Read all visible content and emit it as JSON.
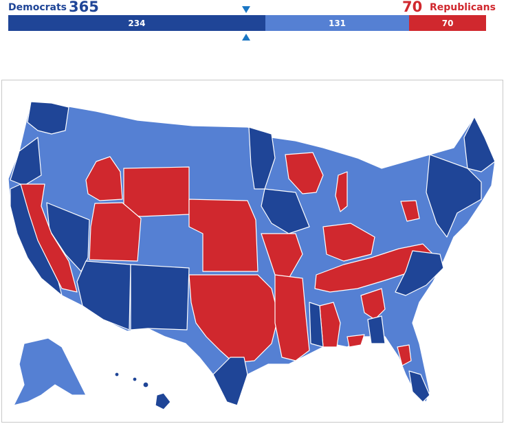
{
  "header": {
    "dem_label": "Democrats",
    "dem_total": "365",
    "rep_total": "70",
    "rep_label": "Republicans"
  },
  "bar": {
    "segments": [
      {
        "name": "dem-safe",
        "label": "234",
        "value": 234,
        "color": "#1f4597"
      },
      {
        "name": "dem-lean",
        "label": "131",
        "value": 131,
        "color": "#5580d3"
      },
      {
        "name": "rep",
        "label": "70",
        "value": 70,
        "color": "#d0282e"
      }
    ],
    "marker_color": "#1a76c4"
  },
  "map": {
    "colors": {
      "dem_safe": "#1f4597",
      "dem_lean": "#5580d3",
      "rep": "#d0282e",
      "border": "#ffffff"
    }
  }
}
